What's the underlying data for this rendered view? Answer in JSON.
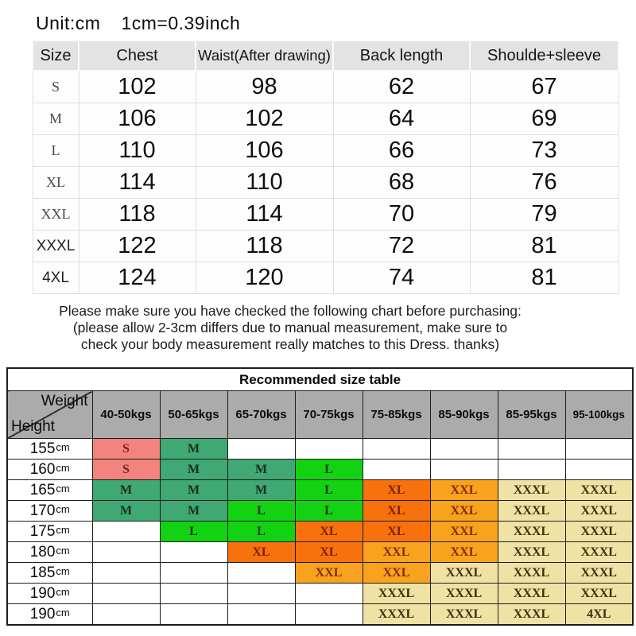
{
  "unit_note": {
    "unit": "Unit:cm",
    "conversion": "1cm=0.39inch"
  },
  "size_chart": {
    "headers": [
      "Size",
      "Chest",
      "Waist(After drawing)",
      "Back length",
      "Shoulde+sleeve"
    ],
    "rows": [
      {
        "size": "S",
        "values": [
          "102",
          "98",
          "62",
          "67"
        ]
      },
      {
        "size": "M",
        "values": [
          "106",
          "102",
          "64",
          "69"
        ]
      },
      {
        "size": "L",
        "values": [
          "110",
          "106",
          "66",
          "73"
        ]
      },
      {
        "size": "XL",
        "values": [
          "114",
          "110",
          "68",
          "76"
        ]
      },
      {
        "size": "XXL",
        "values": [
          "118",
          "114",
          "70",
          "79"
        ]
      },
      {
        "size": "XXXL",
        "values": [
          "122",
          "118",
          "72",
          "81"
        ]
      },
      {
        "size": "4XL",
        "values": [
          "124",
          "120",
          "74",
          "81"
        ]
      }
    ]
  },
  "notice": {
    "line1": "Please make sure you have checked the following chart before purchasing:",
    "line2": "(please allow 2-3cm differs due to manual measurement, make sure to",
    "line3": "check your body measurement really matches to this Dress. thanks)"
  },
  "recommended": {
    "title": "Recommended size table",
    "corner": {
      "top": "Weight",
      "bottom": "Height"
    },
    "weight_cols": [
      "40-50kgs",
      "50-65kgs",
      "65-70kgs",
      "70-75kgs",
      "75-85kgs",
      "85-90kgs",
      "85-95kgs",
      "95-100kgs"
    ],
    "height_unit": "cm",
    "rows": [
      {
        "height": "155",
        "cells": [
          "S",
          "M",
          "",
          "",
          "",
          "",
          "",
          ""
        ]
      },
      {
        "height": "160",
        "cells": [
          "S",
          "M",
          "M",
          "L",
          "",
          "",
          "",
          ""
        ]
      },
      {
        "height": "165",
        "cells": [
          "M",
          "M",
          "M",
          "L",
          "XL",
          "XXL",
          "XXXL",
          "XXXL"
        ]
      },
      {
        "height": "170",
        "cells": [
          "M",
          "M",
          "L",
          "L",
          "XL",
          "XXL",
          "XXXL",
          "XXXL"
        ]
      },
      {
        "height": "175",
        "cells": [
          "",
          "L",
          "L",
          "XL",
          "XL",
          "XXL",
          "XXXL",
          "XXXL"
        ]
      },
      {
        "height": "180",
        "cells": [
          "",
          "",
          "XL",
          "XL",
          "XXL",
          "XXL",
          "XXXL",
          "XXXL"
        ]
      },
      {
        "height": "185",
        "cells": [
          "",
          "",
          "",
          "XXL",
          "XXL",
          "XXXL",
          "XXXL",
          "XXXL"
        ]
      },
      {
        "height": "190",
        "cells": [
          "",
          "",
          "",
          "",
          "XXXL",
          "XXXL",
          "XXXL",
          "XXXL"
        ]
      },
      {
        "height": "190",
        "cells": [
          "",
          "",
          "",
          "",
          "XXXL",
          "XXXL",
          "XXXL",
          "4XL"
        ]
      }
    ],
    "size_colors": {
      "S": {
        "bg": "#f2837f",
        "fg": "#7a2121"
      },
      "M": {
        "bg": "#3fa873",
        "fg": "#17301b"
      },
      "L": {
        "bg": "#12d212",
        "fg": "#113311"
      },
      "XL": {
        "bg": "#f7710d",
        "fg": "#7c2100"
      },
      "XXL": {
        "bg": "#f8a21d",
        "fg": "#7c2d00"
      },
      "XXXL": {
        "bg": "#f0e2a4",
        "fg": "#3e300c"
      },
      "4XL": {
        "bg": "#f0e2a4",
        "fg": "#3e300c"
      }
    },
    "header_bg": "#ababab"
  }
}
